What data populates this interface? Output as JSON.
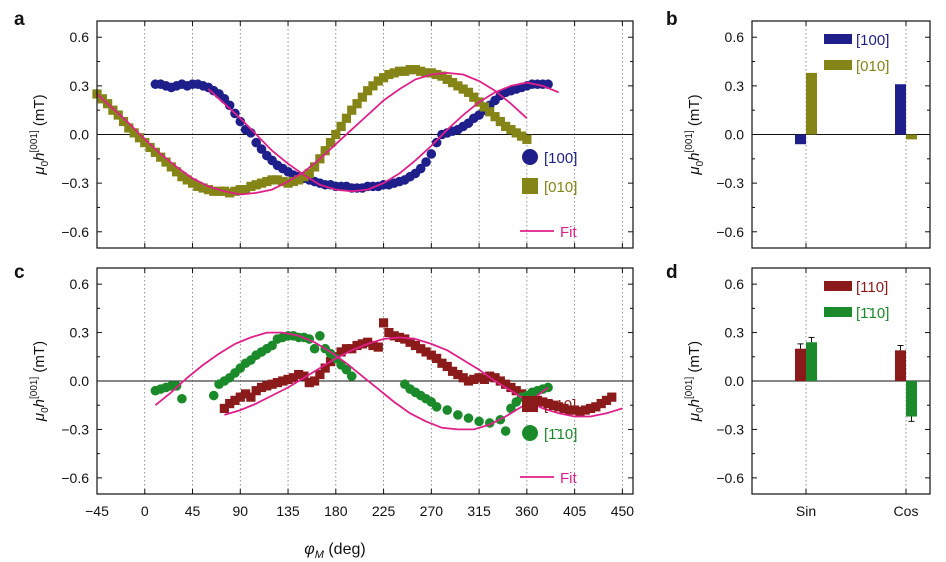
{
  "chart_data": [
    {
      "panel": "a",
      "type": "scatter",
      "xlim": [
        -45,
        460
      ],
      "ylim": [
        -0.7,
        0.7
      ],
      "xticks": [
        -45,
        0,
        45,
        90,
        135,
        180,
        225,
        270,
        315,
        360,
        405,
        450
      ],
      "yticks": [
        -0.6,
        -0.3,
        0.0,
        0.3,
        0.6
      ],
      "ytick_labels": [
        "−0.6",
        "−0.3",
        "0.0",
        "0.3",
        "0.6"
      ],
      "ylabel": {
        "mu": "μ",
        "sub0": "0",
        "h": "h",
        "sup": "[001]",
        "unit": " (mT)"
      },
      "vgrid": "dotted",
      "zero_line": true,
      "series": [
        {
          "name": "[100]",
          "marker": "circle",
          "color": "#1f1f8c",
          "x": [
            10,
            15,
            20,
            25,
            30,
            35,
            40,
            45,
            50,
            55,
            60,
            65,
            70,
            75,
            80,
            85,
            90,
            95,
            100,
            105,
            110,
            115,
            120,
            125,
            130,
            135,
            140,
            145,
            150,
            155,
            160,
            165,
            170,
            175,
            180,
            185,
            190,
            195,
            200,
            205,
            210,
            215,
            220,
            225,
            230,
            235,
            240,
            245,
            250,
            255,
            260,
            265,
            270,
            275,
            280,
            285,
            290,
            295,
            300,
            305,
            310,
            315,
            320,
            325,
            330,
            335,
            340,
            345,
            350,
            355,
            360,
            365,
            370,
            375,
            380
          ],
          "y": [
            0.31,
            0.31,
            0.3,
            0.29,
            0.3,
            0.31,
            0.3,
            0.31,
            0.31,
            0.3,
            0.29,
            0.27,
            0.25,
            0.22,
            0.18,
            0.13,
            0.08,
            0.03,
            0.01,
            -0.05,
            -0.09,
            -0.13,
            -0.16,
            -0.19,
            -0.21,
            -0.23,
            -0.25,
            -0.26,
            -0.27,
            -0.28,
            -0.29,
            -0.3,
            -0.31,
            -0.31,
            -0.32,
            -0.32,
            -0.32,
            -0.33,
            -0.33,
            -0.33,
            -0.32,
            -0.32,
            -0.32,
            -0.31,
            -0.31,
            -0.3,
            -0.29,
            -0.28,
            -0.26,
            -0.24,
            -0.21,
            -0.17,
            -0.12,
            -0.05,
            0.0,
            0.01,
            0.02,
            0.03,
            0.05,
            0.07,
            0.1,
            0.12,
            0.15,
            0.18,
            0.21,
            0.24,
            0.26,
            0.27,
            0.28,
            0.29,
            0.3,
            0.31,
            0.31,
            0.31,
            0.31
          ]
        },
        {
          "name": "[010]",
          "marker": "square",
          "color": "#858517",
          "x": [
            -45,
            -40,
            -35,
            -30,
            -25,
            -20,
            -15,
            -10,
            -5,
            0,
            5,
            10,
            15,
            20,
            25,
            30,
            35,
            40,
            45,
            50,
            55,
            60,
            65,
            70,
            75,
            80,
            85,
            90,
            95,
            100,
            105,
            110,
            115,
            120,
            125,
            130,
            135,
            140,
            145,
            150,
            155,
            160,
            165,
            170,
            175,
            180,
            185,
            190,
            195,
            200,
            205,
            210,
            215,
            220,
            225,
            230,
            235,
            240,
            245,
            250,
            255,
            260,
            265,
            270,
            275,
            280,
            285,
            290,
            295,
            300,
            305,
            310,
            315,
            320,
            325,
            330,
            335,
            340,
            345,
            350,
            355,
            360
          ],
          "y": [
            0.25,
            0.22,
            0.19,
            0.15,
            0.12,
            0.08,
            0.04,
            0.01,
            -0.02,
            -0.05,
            -0.08,
            -0.11,
            -0.14,
            -0.17,
            -0.2,
            -0.23,
            -0.26,
            -0.28,
            -0.3,
            -0.32,
            -0.33,
            -0.34,
            -0.35,
            -0.35,
            -0.35,
            -0.36,
            -0.35,
            -0.34,
            -0.34,
            -0.32,
            -0.31,
            -0.3,
            -0.29,
            -0.28,
            -0.28,
            -0.29,
            -0.3,
            -0.29,
            -0.28,
            -0.26,
            -0.24,
            -0.2,
            -0.15,
            -0.1,
            -0.05,
            0.0,
            0.05,
            0.1,
            0.15,
            0.19,
            0.23,
            0.27,
            0.3,
            0.33,
            0.35,
            0.37,
            0.38,
            0.39,
            0.39,
            0.4,
            0.4,
            0.39,
            0.38,
            0.38,
            0.37,
            0.36,
            0.34,
            0.32,
            0.3,
            0.28,
            0.26,
            0.23,
            0.2,
            0.17,
            0.14,
            0.11,
            0.08,
            0.05,
            0.03,
            0.01,
            -0.01,
            -0.03
          ]
        },
        {
          "name": "Fit",
          "kind": "fit",
          "color": "#e0208a",
          "x": [
            -45,
            -30,
            -15,
            0,
            15,
            30,
            45,
            60,
            75,
            90,
            105,
            120,
            135,
            150,
            165,
            180,
            195,
            210,
            225,
            240,
            255,
            270,
            285,
            300,
            315,
            330,
            345,
            360
          ],
          "y": [
            0.25,
            0.16,
            0.07,
            -0.03,
            -0.12,
            -0.2,
            -0.27,
            -0.32,
            -0.35,
            -0.37,
            -0.36,
            -0.34,
            -0.29,
            -0.23,
            -0.15,
            -0.06,
            0.03,
            0.12,
            0.21,
            0.28,
            0.34,
            0.37,
            0.38,
            0.37,
            0.33,
            0.27,
            0.19,
            0.1
          ]
        },
        {
          "name": "Fit",
          "kind": "fit",
          "legend": false,
          "color": "#e0208a",
          "x": [
            60,
            75,
            90,
            105,
            120,
            135,
            150,
            165,
            180,
            195,
            210,
            225,
            240,
            255,
            270,
            285,
            300,
            315,
            330,
            345,
            360,
            375,
            390
          ],
          "y": [
            0.28,
            0.19,
            0.1,
            0.0,
            -0.1,
            -0.18,
            -0.25,
            -0.31,
            -0.34,
            -0.35,
            -0.34,
            -0.3,
            -0.24,
            -0.16,
            -0.07,
            0.03,
            0.12,
            0.2,
            0.26,
            0.3,
            0.32,
            0.3,
            0.26
          ]
        }
      ]
    },
    {
      "panel": "b",
      "type": "bar",
      "categories": [
        "Sin",
        "Cos"
      ],
      "ylim": [
        -0.7,
        0.7
      ],
      "yticks": [
        -0.6,
        -0.3,
        0.0,
        0.3,
        0.6
      ],
      "ytick_labels": [
        "−0.6",
        "−0.3",
        "0.0",
        "0.3",
        "0.6"
      ],
      "ylabel": {
        "mu": "μ",
        "sub0": "0",
        "h": "h",
        "sup": "[001]",
        "unit": " (mT)"
      },
      "series": [
        {
          "name": "[100]",
          "color": "#1f1f8c",
          "values": [
            -0.06,
            0.31
          ]
        },
        {
          "name": "[010]",
          "color": "#858517",
          "values": [
            0.38,
            -0.03
          ]
        }
      ]
    },
    {
      "panel": "c",
      "type": "scatter",
      "xlim": [
        -45,
        460
      ],
      "ylim": [
        -0.7,
        0.7
      ],
      "xticks": [
        -45,
        0,
        45,
        90,
        135,
        180,
        225,
        270,
        315,
        360,
        405,
        450
      ],
      "yticks": [
        -0.6,
        -0.3,
        0.0,
        0.3,
        0.6
      ],
      "ytick_labels": [
        "−0.6",
        "−0.3",
        "0.0",
        "0.3",
        "0.6"
      ],
      "ylabel": {
        "mu": "μ",
        "sub0": "0",
        "h": "h",
        "sup": "[001]",
        "unit": " (mT)"
      },
      "xlabel": {
        "phi": "φ",
        "sub": "M",
        "unit": " (deg)"
      },
      "xtick_labels": [
        "−45",
        "0",
        "45",
        "90",
        "135",
        "180",
        "225",
        "270",
        "315",
        "360",
        "405",
        "450"
      ],
      "vgrid": "dotted",
      "zero_line": true,
      "series": [
        {
          "name": "[110]",
          "marker": "square",
          "color": "#8b1a1a",
          "x": [
            75,
            80,
            85,
            90,
            95,
            100,
            105,
            110,
            115,
            120,
            125,
            130,
            135,
            140,
            145,
            150,
            155,
            160,
            165,
            170,
            175,
            180,
            185,
            190,
            195,
            200,
            205,
            210,
            215,
            220,
            225,
            230,
            235,
            240,
            245,
            250,
            255,
            260,
            265,
            270,
            275,
            280,
            285,
            290,
            295,
            300,
            305,
            310,
            315,
            320,
            325,
            330,
            335,
            340,
            345,
            350,
            355,
            360,
            365,
            370,
            375,
            380,
            385,
            390,
            395,
            400,
            405,
            410,
            415,
            420,
            425,
            430,
            435,
            440
          ],
          "y": [
            -0.17,
            -0.14,
            -0.12,
            -0.1,
            -0.08,
            -0.1,
            -0.06,
            -0.04,
            -0.03,
            -0.02,
            -0.01,
            0.0,
            0.01,
            0.02,
            0.04,
            0.03,
            -0.01,
            0.0,
            0.04,
            0.08,
            0.12,
            0.15,
            0.18,
            0.2,
            0.2,
            0.22,
            0.23,
            0.24,
            0.22,
            0.21,
            0.36,
            0.3,
            0.28,
            0.27,
            0.26,
            0.24,
            0.22,
            0.2,
            0.18,
            0.16,
            0.14,
            0.11,
            0.09,
            0.06,
            0.04,
            0.02,
            0.0,
            0.01,
            0.02,
            0.01,
            0.03,
            0.02,
            0.0,
            -0.02,
            -0.04,
            -0.06,
            -0.08,
            -0.09,
            -0.1,
            -0.12,
            -0.13,
            -0.14,
            -0.15,
            -0.16,
            -0.17,
            -0.18,
            -0.18,
            -0.19,
            -0.18,
            -0.17,
            -0.16,
            -0.14,
            -0.12,
            -0.1
          ]
        },
        {
          "name": "[1̄10]",
          "marker": "circle",
          "color": "#1b8a2a",
          "x": [
            10,
            15,
            20,
            25,
            30,
            35,
            65,
            70,
            75,
            80,
            85,
            90,
            95,
            100,
            105,
            110,
            115,
            120,
            125,
            130,
            135,
            140,
            145,
            150,
            155,
            160,
            165,
            170,
            175,
            180,
            185,
            190,
            195,
            245,
            250,
            255,
            260,
            265,
            270,
            275,
            285,
            295,
            305,
            315,
            325,
            335,
            340,
            345,
            350,
            355,
            360,
            365,
            370,
            375,
            380
          ],
          "y": [
            -0.06,
            -0.05,
            -0.04,
            -0.03,
            -0.03,
            -0.11,
            -0.09,
            -0.02,
            0.0,
            0.02,
            0.05,
            0.08,
            0.11,
            0.13,
            0.16,
            0.18,
            0.2,
            0.22,
            0.26,
            0.27,
            0.28,
            0.28,
            0.27,
            0.27,
            0.26,
            0.2,
            0.28,
            0.2,
            0.17,
            0.14,
            0.1,
            0.07,
            0.03,
            -0.02,
            -0.05,
            -0.07,
            -0.09,
            -0.11,
            -0.13,
            -0.16,
            -0.18,
            -0.21,
            -0.23,
            -0.25,
            -0.26,
            -0.24,
            -0.31,
            -0.17,
            -0.13,
            -0.1,
            -0.09,
            -0.07,
            -0.06,
            -0.05,
            -0.04
          ]
        },
        {
          "name": "Fit",
          "kind": "fit",
          "color": "#e0208a",
          "x": [
            75,
            90,
            105,
            120,
            135,
            150,
            165,
            180,
            195,
            210,
            225,
            240,
            255,
            270,
            285,
            300,
            315,
            330,
            345,
            360,
            375,
            390,
            405,
            420,
            435,
            450
          ],
          "y": [
            -0.21,
            -0.18,
            -0.14,
            -0.09,
            -0.04,
            0.02,
            0.08,
            0.14,
            0.19,
            0.23,
            0.26,
            0.27,
            0.26,
            0.23,
            0.19,
            0.13,
            0.07,
            0.0,
            -0.06,
            -0.12,
            -0.17,
            -0.2,
            -0.22,
            -0.22,
            -0.2,
            -0.17
          ]
        },
        {
          "name": "Fit",
          "kind": "fit",
          "legend": false,
          "color": "#e0208a",
          "x": [
            10,
            25,
            40,
            55,
            70,
            85,
            100,
            115,
            130,
            145,
            160,
            175,
            190,
            205,
            220,
            235,
            250,
            265,
            280,
            295,
            310,
            325,
            340,
            355,
            370,
            380
          ],
          "y": [
            -0.15,
            -0.07,
            0.02,
            0.1,
            0.17,
            0.23,
            0.27,
            0.3,
            0.3,
            0.28,
            0.24,
            0.18,
            0.11,
            0.03,
            -0.05,
            -0.13,
            -0.2,
            -0.25,
            -0.29,
            -0.3,
            -0.3,
            -0.27,
            -0.22,
            -0.16,
            -0.09,
            -0.04
          ]
        }
      ]
    },
    {
      "panel": "d",
      "type": "bar",
      "categories": [
        "Sin",
        "Cos"
      ],
      "ylim": [
        -0.7,
        0.7
      ],
      "yticks": [
        -0.6,
        -0.3,
        0.0,
        0.3,
        0.6
      ],
      "ytick_labels": [
        "−0.6",
        "−0.3",
        "0.0",
        "0.3",
        "0.6"
      ],
      "ylabel": {
        "mu": "μ",
        "sub0": "0",
        "h": "h",
        "sup": "[001]",
        "unit": " (mT)"
      },
      "series": [
        {
          "name": "[110]",
          "color": "#8b1a1a",
          "values": [
            0.2,
            0.19
          ],
          "errors": [
            0.03,
            0.03
          ]
        },
        {
          "name": "[1̄10]",
          "color": "#1b8a2a",
          "values": [
            0.24,
            -0.22
          ],
          "errors": [
            0.03,
            0.03
          ]
        }
      ]
    }
  ]
}
